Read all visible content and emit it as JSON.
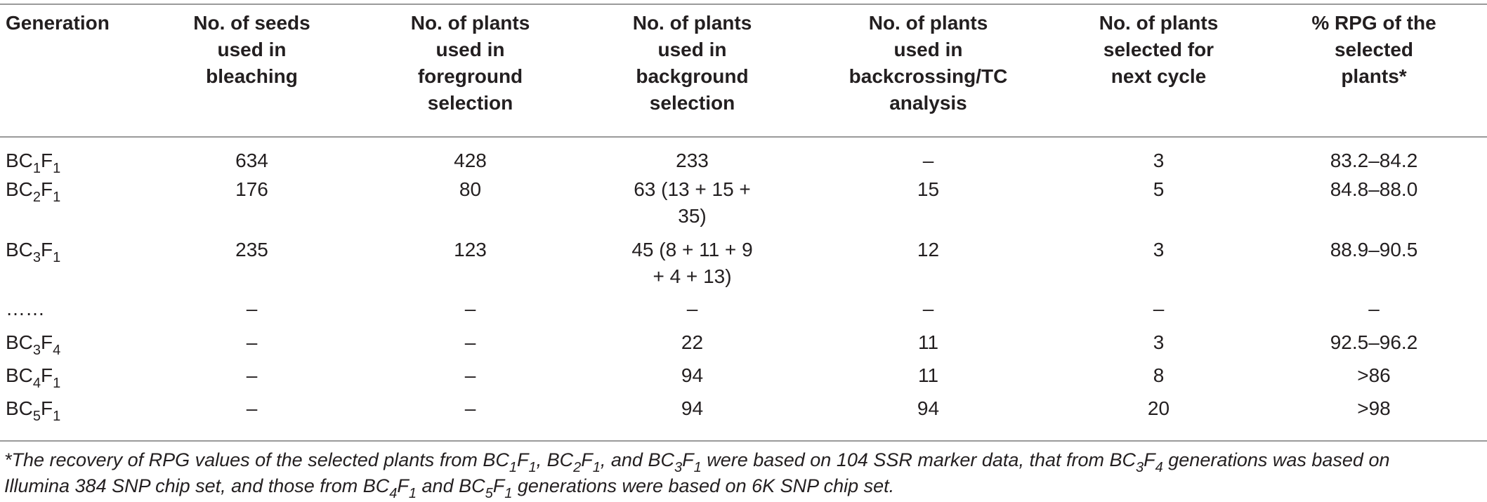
{
  "table": {
    "headers": [
      "Generation",
      "No. of seeds used in bleaching",
      "No. of plants used in foreground selection",
      "No. of plants used in background selection",
      "No. of plants used in backcrossing/TC analysis",
      "No. of plants selected for next cycle",
      "% RPG of the selected plants*"
    ],
    "header_lines": [
      [
        "Generation"
      ],
      [
        "No. of seeds",
        "used in",
        "bleaching"
      ],
      [
        "No. of plants",
        "used in",
        "foreground",
        "selection"
      ],
      [
        "No. of plants",
        "used in",
        "background",
        "selection"
      ],
      [
        "No. of plants",
        "used in",
        "backcrossing/TC",
        "analysis"
      ],
      [
        "No. of plants",
        "selected for",
        "next cycle"
      ],
      [
        "% RPG of the",
        "selected",
        "plants*"
      ]
    ],
    "rows": [
      {
        "generation": {
          "bc": "BC",
          "bc_sub": "1",
          "f": "F",
          "f_sub": "1"
        },
        "seeds": "634",
        "foreground": "428",
        "background": [
          "233"
        ],
        "backcrossing": "–",
        "selected": "3",
        "rpg": "83.2–84.2"
      },
      {
        "generation": {
          "bc": "BC",
          "bc_sub": "2",
          "f": "F",
          "f_sub": "1"
        },
        "seeds": "176",
        "foreground": "80",
        "background": [
          "63 (13 + 15 +",
          "35)"
        ],
        "backcrossing": "15",
        "selected": "5",
        "rpg": "84.8–88.0"
      },
      {
        "generation": {
          "bc": "BC",
          "bc_sub": "3",
          "f": "F",
          "f_sub": "1"
        },
        "seeds": "235",
        "foreground": "123",
        "background": [
          "45 (8 + 11 + 9",
          "+ 4 + 13)"
        ],
        "backcrossing": "12",
        "selected": "3",
        "rpg": "88.9–90.5"
      },
      {
        "generation": {
          "text": "……"
        },
        "seeds": "–",
        "foreground": "–",
        "background": [
          "–"
        ],
        "backcrossing": "–",
        "selected": "–",
        "rpg": "–"
      },
      {
        "generation": {
          "bc": "BC",
          "bc_sub": "3",
          "f": "F",
          "f_sub": "4"
        },
        "seeds": "–",
        "foreground": "–",
        "background": [
          "22"
        ],
        "backcrossing": "11",
        "selected": "3",
        "rpg": "92.5–96.2"
      },
      {
        "generation": {
          "bc": "BC",
          "bc_sub": "4",
          "f": "F",
          "f_sub": "1"
        },
        "seeds": "–",
        "foreground": "–",
        "background": [
          "94"
        ],
        "backcrossing": "11",
        "selected": "8",
        "rpg": ">86"
      },
      {
        "generation": {
          "bc": "BC",
          "bc_sub": "5",
          "f": "F",
          "f_sub": "1"
        },
        "seeds": "–",
        "foreground": "–",
        "background": [
          "94"
        ],
        "backcrossing": "94",
        "selected": "20",
        "rpg": ">98"
      }
    ]
  },
  "footnote": {
    "line1": {
      "t1": "*The recovery of RPG values of the selected plants from ",
      "g1": {
        "bc": "BC",
        "bc_sub": "1",
        "f": "F",
        "f_sub": "1"
      },
      "t2": ", ",
      "g2": {
        "bc": "BC",
        "bc_sub": "2",
        "f": "F",
        "f_sub": "1"
      },
      "t3": ", and ",
      "g3": {
        "bc": "BC",
        "bc_sub": "3",
        "f": "F",
        "f_sub": "1"
      },
      "t4": " were based on 104 SSR marker data, that from ",
      "g4": {
        "bc": "BC",
        "bc_sub": "3",
        "f": "F",
        "f_sub": "4"
      },
      "t5": " generations was based on"
    },
    "line2": {
      "t1": "Illumina 384 SNP chip set, and those from ",
      "g1": {
        "bc": "BC",
        "bc_sub": "4",
        "f": "F",
        "f_sub": "1"
      },
      "t2": " and ",
      "g2": {
        "bc": "BC",
        "bc_sub": "5",
        "f": "F",
        "f_sub": "1"
      },
      "t3": " generations were based on 6K SNP chip set."
    }
  }
}
